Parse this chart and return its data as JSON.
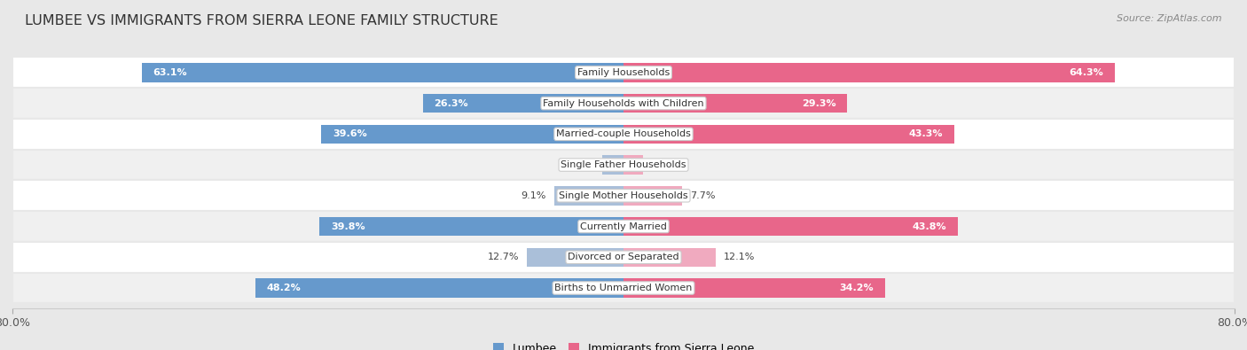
{
  "title": "LUMBEE VS IMMIGRANTS FROM SIERRA LEONE FAMILY STRUCTURE",
  "source": "Source: ZipAtlas.com",
  "categories": [
    "Family Households",
    "Family Households with Children",
    "Married-couple Households",
    "Single Father Households",
    "Single Mother Households",
    "Currently Married",
    "Divorced or Separated",
    "Births to Unmarried Women"
  ],
  "lumbee_values": [
    63.1,
    26.3,
    39.6,
    2.8,
    9.1,
    39.8,
    12.7,
    48.2
  ],
  "sierra_leone_values": [
    64.3,
    29.3,
    43.3,
    2.5,
    7.7,
    43.8,
    12.1,
    34.2
  ],
  "lumbee_color_dark": "#6699cc",
  "lumbee_color_light": "#aabfd9",
  "sierra_leone_color_dark": "#e8668a",
  "sierra_leone_color_light": "#f0aabf",
  "axis_max": 80.0,
  "bg_color": "#e8e8e8",
  "row_color_even": "#ffffff",
  "row_color_odd": "#f0f0f0",
  "title_fontsize": 11.5,
  "source_fontsize": 8,
  "label_fontsize": 8,
  "value_fontsize": 8,
  "legend_fontsize": 9,
  "large_threshold": 15
}
